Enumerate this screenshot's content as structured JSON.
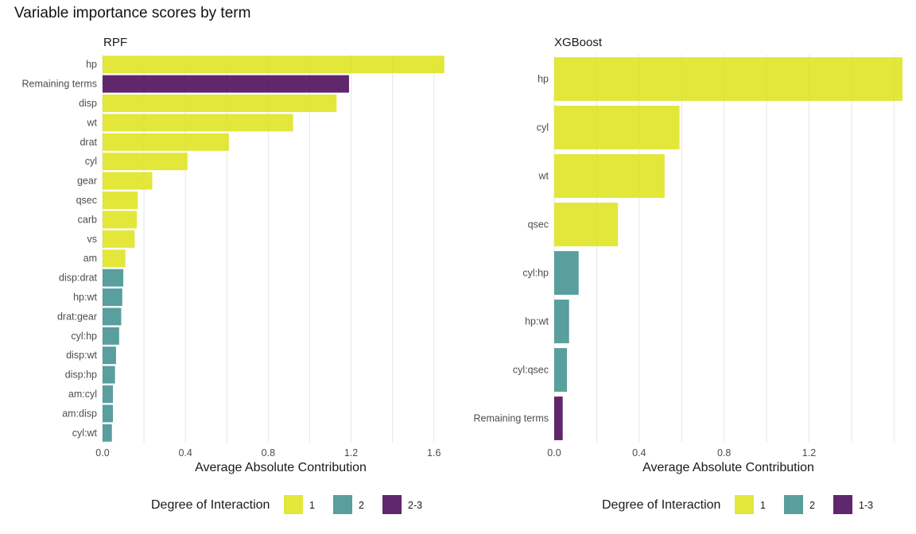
{
  "title": "Variable importance scores by term",
  "colors": {
    "1": "#DDE318",
    "2": "#3B8E8C",
    "3": "#440154",
    "grid": "#e5e5e5"
  },
  "chart_data": [
    {
      "type": "bar",
      "orientation": "horizontal",
      "facet": "RPF",
      "xlabel": "Average Absolute Contribution",
      "xlim": [
        0,
        1.72
      ],
      "xticks": [
        0.0,
        0.4,
        0.8,
        1.2,
        1.6
      ],
      "tick_labels": [
        "0.0",
        "0.4",
        "0.8",
        "1.2",
        "1.6"
      ],
      "categories": [
        "hp",
        "Remaining terms",
        "disp",
        "wt",
        "drat",
        "cyl",
        "gear",
        "qsec",
        "carb",
        "vs",
        "am",
        "disp:drat",
        "hp:wt",
        "drat:gear",
        "cyl:hp",
        "disp:wt",
        "disp:hp",
        "am:cyl",
        "am:disp",
        "cyl:wt"
      ],
      "values": [
        1.65,
        1.19,
        1.13,
        0.92,
        0.61,
        0.41,
        0.24,
        0.17,
        0.165,
        0.155,
        0.11,
        0.1,
        0.095,
        0.09,
        0.08,
        0.065,
        0.06,
        0.05,
        0.05,
        0.045
      ],
      "degree": [
        "1",
        "2-3",
        "1",
        "1",
        "1",
        "1",
        "1",
        "1",
        "1",
        "1",
        "1",
        "2",
        "2",
        "2",
        "2",
        "2",
        "2",
        "2",
        "2",
        "2"
      ],
      "legend": {
        "title": "Degree of Interaction",
        "entries": [
          {
            "label": "1",
            "color": "#DDE318"
          },
          {
            "label": "2",
            "color": "#3B8E8C"
          },
          {
            "label": "2-3",
            "color": "#440154"
          }
        ]
      }
    },
    {
      "type": "bar",
      "orientation": "horizontal",
      "facet": "XGBoost",
      "xlabel": "Average Absolute Contribution",
      "xlim": [
        0,
        1.64
      ],
      "xticks": [
        0.0,
        0.4,
        0.8,
        1.2
      ],
      "tick_labels": [
        "0.0",
        "0.4",
        "0.8",
        "1.2"
      ],
      "categories": [
        "hp",
        "cyl",
        "wt",
        "qsec",
        "cyl:hp",
        "hp:wt",
        "cyl:qsec",
        "Remaining terms"
      ],
      "values": [
        1.64,
        0.59,
        0.52,
        0.3,
        0.115,
        0.07,
        0.06,
        0.04
      ],
      "degree": [
        "1",
        "1",
        "1",
        "1",
        "2",
        "2",
        "2",
        "1-3"
      ],
      "legend": {
        "title": "Degree of Interaction",
        "entries": [
          {
            "label": "1",
            "color": "#DDE318"
          },
          {
            "label": "2",
            "color": "#3B8E8C"
          },
          {
            "label": "1-3",
            "color": "#440154"
          }
        ]
      }
    }
  ]
}
